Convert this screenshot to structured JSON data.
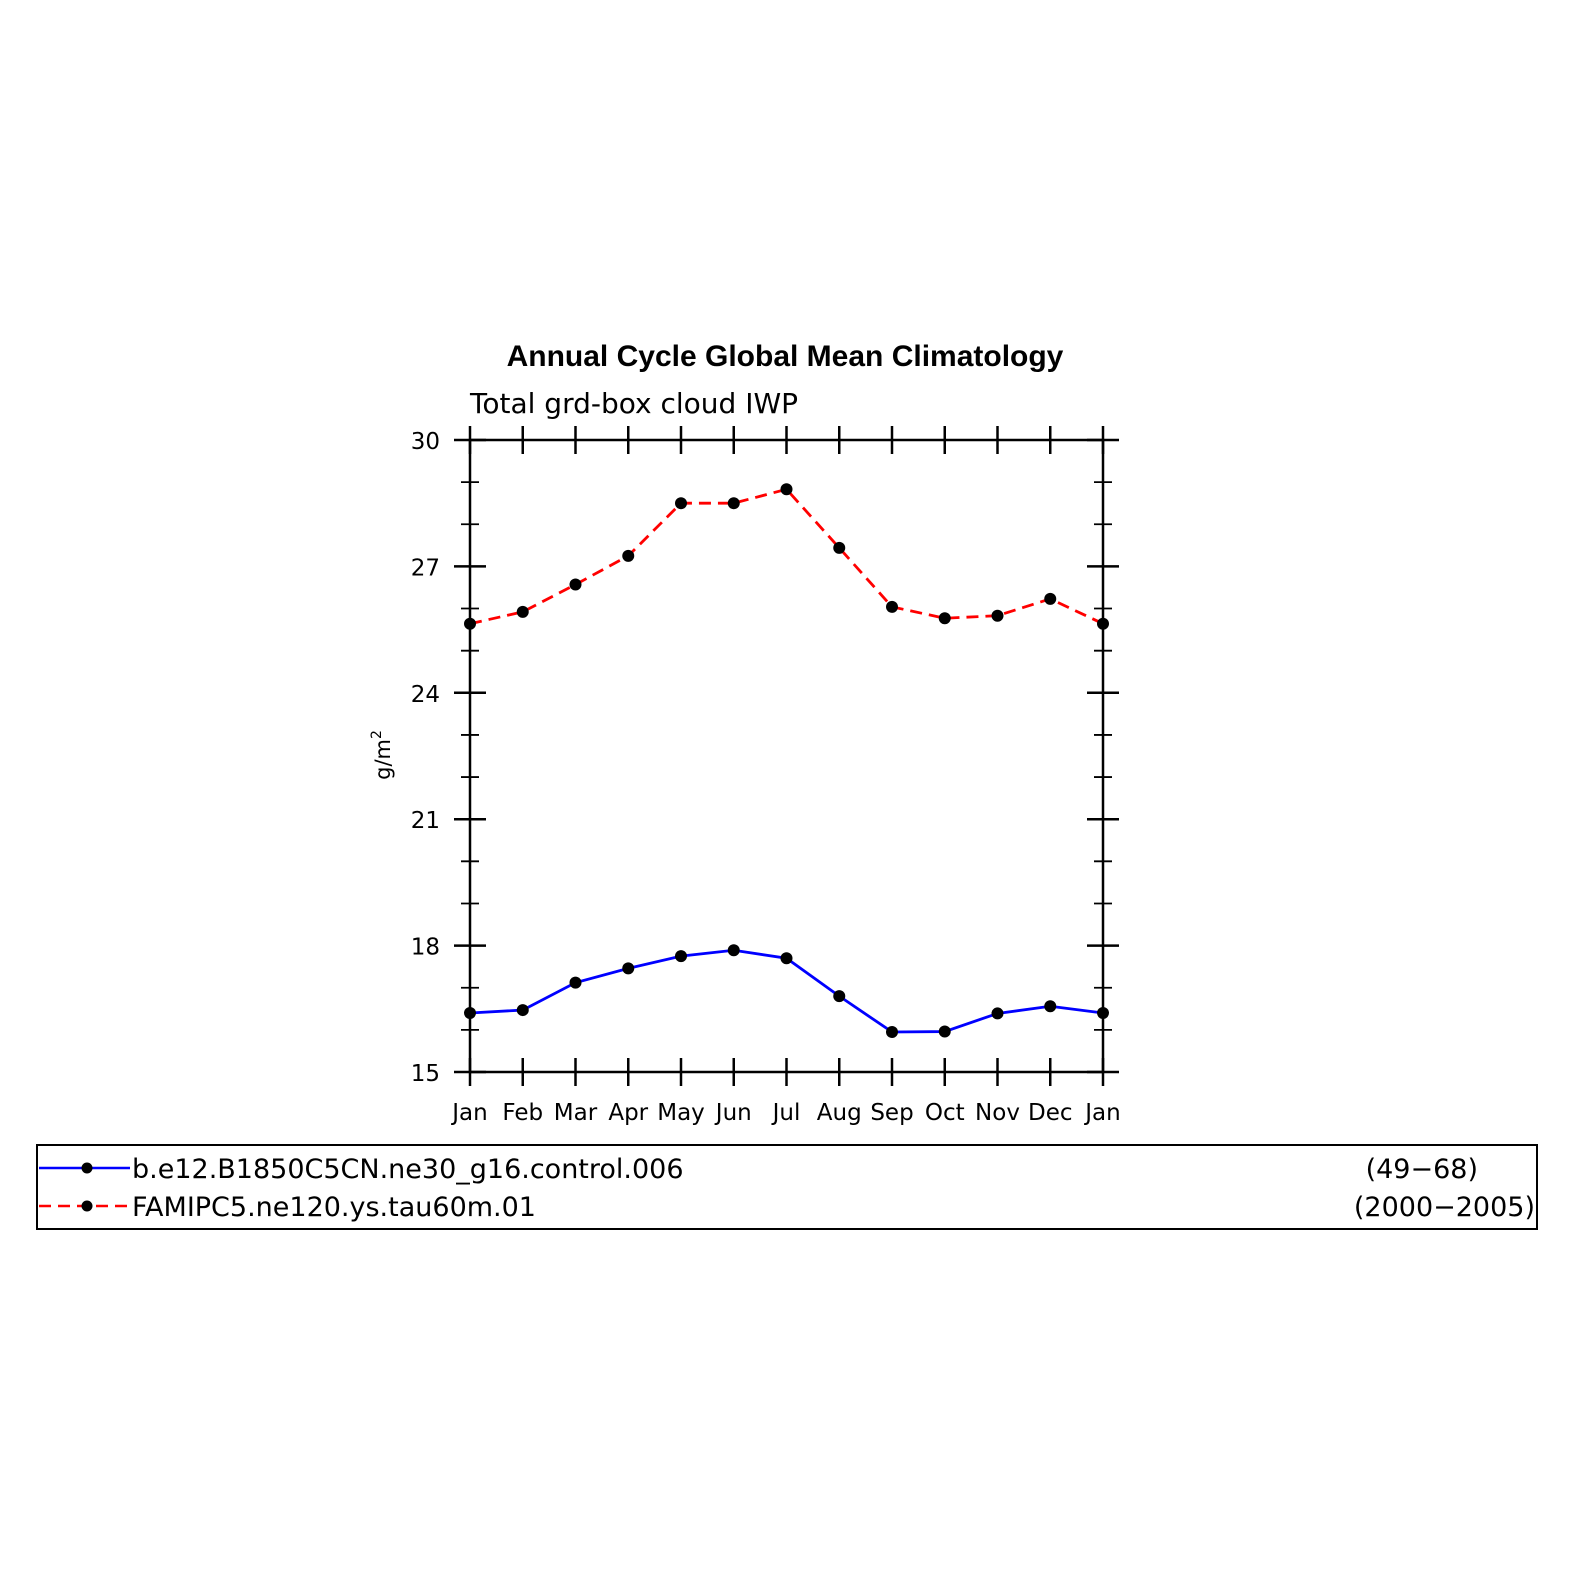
{
  "chart_data": {
    "type": "line",
    "title": "Annual Cycle Global Mean Climatology",
    "subtitle": "Total grd-box cloud IWP",
    "ylabel": "g/m",
    "ylabel_sup": "2",
    "xlabel": "",
    "categories": [
      "Jan",
      "Feb",
      "Mar",
      "Apr",
      "May",
      "Jun",
      "Jul",
      "Aug",
      "Sep",
      "Oct",
      "Nov",
      "Dec",
      "Jan"
    ],
    "ylim": [
      15,
      30
    ],
    "yticks": [
      "15",
      "18",
      "21",
      "24",
      "27",
      "30"
    ],
    "grid": false,
    "legend_position": "bottom",
    "series": [
      {
        "name": "b.e12.B1850C5CN.ne30_g16.control.006",
        "period": "(49−68)",
        "color": "#0000ff",
        "dash": "solid",
        "values": [
          16.4,
          16.47,
          17.12,
          17.46,
          17.75,
          17.89,
          17.7,
          16.8,
          15.95,
          15.96,
          16.39,
          16.56,
          16.4
        ]
      },
      {
        "name": "FAMIPC5.ne120.ys.tau60m.01",
        "period": "(2000−2005)",
        "color": "#ff0000",
        "dash": "dashed",
        "values": [
          25.64,
          25.92,
          26.57,
          27.25,
          28.5,
          28.5,
          28.83,
          27.44,
          26.04,
          25.77,
          25.83,
          26.23,
          25.64
        ]
      }
    ]
  }
}
